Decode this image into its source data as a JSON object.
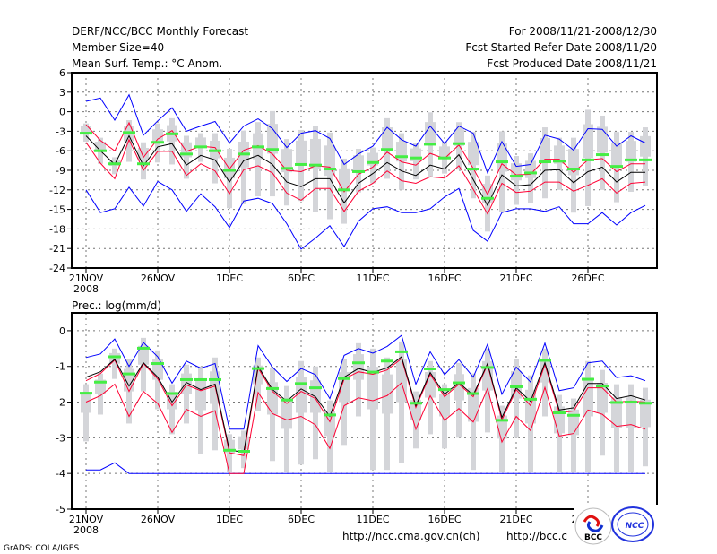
{
  "header": {
    "title": "DERF/NCC/BCC Monthly Forecast",
    "member_size": "Member Size=40",
    "temp_label": "Mean Surf. Temp.: °C Anom.",
    "period": "For 2008/11/21-2008/12/30",
    "started": "Fcst Started Refer Date 2008/11/20",
    "produced": "Fcst Produced Date 2008/11/21"
  },
  "footer": {
    "grads": "GrADS: COLA/IGES",
    "url_ncc": "http://ncc.cma.gov.cn(ch)",
    "url_bcc": "http://bcc.c",
    "logo_bcc": "BCC",
    "logo_ncc": "NCC"
  },
  "colors": {
    "max_min": "#0000ff",
    "spread": "#ff0033",
    "mean": "#000000",
    "obs": "#44ee44",
    "range": "#d4d5d9"
  },
  "chart_data": [
    {
      "type": "line",
      "title": "Mean Surf. Temp.: °C Anom.",
      "xlabel": "",
      "ylabel": "",
      "ylim": [
        -24,
        6
      ],
      "yticks": [
        "6",
        "3",
        "0",
        "-3",
        "-6",
        "-9",
        "-12",
        "-15",
        "-18",
        "-21",
        "-24"
      ],
      "yticks_values": [
        6,
        3,
        0,
        -3,
        -6,
        -9,
        -12,
        -15,
        -18,
        -21,
        -24
      ],
      "xticks": [
        "21NOV",
        "26NOV",
        "1DEC",
        "6DEC",
        "11DEC",
        "16DEC",
        "21DEC",
        "26DEC"
      ],
      "xticks_days": [
        0,
        5,
        10,
        15,
        20,
        25,
        30,
        35
      ],
      "year_label": "2008",
      "grid": true,
      "days": 40,
      "series": {
        "max": [
          1.6,
          2.1,
          -1.3,
          2.6,
          -3.6,
          -1.4,
          0.6,
          -3,
          -2.2,
          -1.5,
          -4.8,
          -2.2,
          -1.1,
          -2.6,
          -5.5,
          -3.3,
          -2.9,
          -4.1,
          -8.1,
          -6.5,
          -5.3,
          -2.4,
          -4.3,
          -5.3,
          -2.2,
          -4.9,
          -2.2,
          -3.3,
          -9.4,
          -4.6,
          -8.4,
          -8.1,
          -3.6,
          -4.2,
          -5.9,
          -2.6,
          -2.7,
          -5.3,
          -3.7,
          -4.8
        ],
        "min": [
          -12,
          -15.5,
          -14.9,
          -11.6,
          -14.5,
          -10.7,
          -12,
          -15.3,
          -12.6,
          -14.6,
          -17.8,
          -13.7,
          -13.3,
          -14.1,
          -17.2,
          -21.1,
          -19.4,
          -17.5,
          -20.7,
          -16.8,
          -14.9,
          -14.6,
          -15.5,
          -15.5,
          -14.9,
          -13.1,
          -11.8,
          -18.2,
          -19.9,
          -15.5,
          -14.9,
          -14.9,
          -15.3,
          -14.6,
          -17.2,
          -17.2,
          -15.5,
          -17.4,
          -15.5,
          -14.4
        ],
        "upper": [
          -2,
          -4.4,
          -6,
          -1.7,
          -7,
          -4.2,
          -2.9,
          -6.1,
          -5.3,
          -5.5,
          -8.8,
          -5.9,
          -5.2,
          -6.5,
          -9,
          -9.2,
          -8.3,
          -8.5,
          -12.3,
          -9.6,
          -8.5,
          -6.2,
          -7.7,
          -8.2,
          -6.4,
          -7.2,
          -5.1,
          -8.7,
          -12.7,
          -8,
          -9.7,
          -9.6,
          -7.3,
          -7.3,
          -9.3,
          -7.4,
          -7.2,
          -9.2,
          -8,
          -8
        ],
        "mean": [
          -3.7,
          -6,
          -8.1,
          -3.7,
          -8.3,
          -5.4,
          -4.9,
          -8.2,
          -6.7,
          -7.4,
          -10.8,
          -7.5,
          -6.7,
          -8.1,
          -10.8,
          -11.5,
          -10.3,
          -10.3,
          -14,
          -11,
          -9.5,
          -7.8,
          -9.1,
          -9.8,
          -8.2,
          -8.8,
          -6.6,
          -10.4,
          -14.4,
          -9.7,
          -11.4,
          -11.2,
          -9,
          -8.9,
          -10.9,
          -9.2,
          -8.5,
          -10.8,
          -9.3,
          -9.3
        ],
        "lower": [
          -4.7,
          -7.9,
          -10.3,
          -4.3,
          -9,
          -6.1,
          -6.1,
          -9.8,
          -8,
          -9.1,
          -12.6,
          -8.9,
          -8.3,
          -9.4,
          -12.5,
          -13.6,
          -11.8,
          -11.8,
          -15.3,
          -12.2,
          -11,
          -9.1,
          -10.6,
          -11,
          -10,
          -10.2,
          -8.3,
          -11.9,
          -15.7,
          -11,
          -12.4,
          -12.2,
          -10.8,
          -10.8,
          -12.2,
          -11.3,
          -10.3,
          -12.5,
          -11,
          -10.8
        ],
        "obs": [
          -3.3,
          -6,
          -8,
          -3.2,
          -8,
          -4.7,
          -3.4,
          -6.5,
          -5.4,
          -6,
          -9,
          -6.5,
          -5.4,
          -5.8,
          -8.7,
          -8.1,
          -8.2,
          -8.8,
          -12,
          -9.2,
          -7.8,
          -5.8,
          -6.9,
          -7.1,
          -5,
          -7.1,
          -4.9,
          -8.8,
          -13.3,
          -7.7,
          -9.9,
          -9.4,
          -7.7,
          -7.6,
          -8.8,
          -7.4,
          -6.6,
          -8.4,
          -7.4,
          -7.4
        ],
        "range_hi": [
          -1.8,
          -4,
          -7,
          -1.3,
          -4.7,
          -1.8,
          -1,
          -3.7,
          -3.3,
          -3.3,
          -5.7,
          -2.9,
          -1.6,
          0.1,
          -4.2,
          -2.8,
          -2.2,
          -3.2,
          -7.2,
          -5.7,
          -5.5,
          -1,
          -3.3,
          -4.8,
          -0.1,
          -4.6,
          -1.6,
          -3.1,
          -9.8,
          -3,
          -6.8,
          -6.4,
          -2.4,
          -4,
          -4,
          0.3,
          -0.6,
          -3.1,
          -3.1,
          -2.4
        ],
        "range_lo": [
          -4.6,
          -8,
          -9.6,
          -7.7,
          -10.4,
          -7.8,
          -8.1,
          -10.3,
          -7.7,
          -11,
          -14.8,
          -14.2,
          -13,
          -13,
          -14.4,
          -13.7,
          -15.4,
          -16.5,
          -17.2,
          -12.4,
          -11,
          -10.3,
          -12,
          -10.4,
          -10,
          -9.5,
          -8.9,
          -13.3,
          -18.4,
          -15.4,
          -14.3,
          -14,
          -13.3,
          -12,
          -15.5,
          -14.5,
          -12,
          -13.9,
          -12.3,
          -11.4
        ]
      }
    },
    {
      "type": "line",
      "title": "Prec.: log(mm/d)",
      "xlabel": "",
      "ylabel": "",
      "ylim": [
        -5,
        0.5
      ],
      "yticks": [
        "0",
        "-1",
        "-2",
        "-3",
        "-4",
        "-5"
      ],
      "yticks_values": [
        0,
        -1,
        -2,
        -3,
        -4,
        -5
      ],
      "xticks": [
        "21NOV",
        "26NOV",
        "1DEC",
        "6DEC",
        "11DEC",
        "16DEC",
        "21DEC",
        "26DEC"
      ],
      "xticks_days": [
        0,
        5,
        10,
        15,
        20,
        25,
        30,
        35
      ],
      "year_label": "2008",
      "grid": true,
      "days": 40,
      "series": {
        "max": [
          -0.75,
          -0.65,
          -0.23,
          -1.0,
          -0.33,
          -0.73,
          -1.47,
          -0.85,
          -1.05,
          -0.92,
          -2.76,
          -2.76,
          -0.42,
          -1.02,
          -1.42,
          -1.06,
          -1.23,
          -1.9,
          -0.69,
          -0.5,
          -0.63,
          -0.44,
          -0.13,
          -1.5,
          -0.59,
          -1.23,
          -0.81,
          -1.3,
          -0.38,
          -1.78,
          -1.02,
          -1.44,
          -0.35,
          -1.68,
          -1.6,
          -0.9,
          -0.85,
          -1.31,
          -1.26,
          -1.4
        ],
        "min": [
          -3.9,
          -3.9,
          -3.7,
          -4,
          -4,
          -4,
          -4,
          -4,
          -4,
          -4,
          -4,
          -4,
          -4,
          -4,
          -4,
          -4,
          -4,
          -4,
          -4,
          -4,
          -4,
          -4,
          -4,
          -4,
          -4,
          -4,
          -4,
          -4,
          -4,
          -4,
          -4,
          -4,
          -4,
          -4,
          -4,
          -4,
          -4,
          -4,
          -4,
          -4
        ],
        "upper": [
          -1.4,
          -1.2,
          -0.82,
          -1.7,
          -0.92,
          -1.35,
          -2.1,
          -1.52,
          -1.68,
          -1.55,
          -3.42,
          -3.5,
          -1.05,
          -1.7,
          -2.04,
          -1.7,
          -1.9,
          -2.55,
          -1.35,
          -1.15,
          -1.22,
          -1.1,
          -0.78,
          -2.15,
          -1.22,
          -1.85,
          -1.5,
          -1.85,
          -0.95,
          -2.5,
          -1.65,
          -2.1,
          -0.95,
          -2.3,
          -2.25,
          -1.6,
          -1.6,
          -2.0,
          -1.97,
          -2.0
        ],
        "mean": [
          -1.3,
          -1.15,
          -0.8,
          -1.55,
          -0.9,
          -1.3,
          -2.0,
          -1.45,
          -1.65,
          -1.5,
          -3.35,
          -3.4,
          -1.0,
          -1.65,
          -1.97,
          -1.63,
          -1.85,
          -2.4,
          -1.3,
          -1.06,
          -1.17,
          -1.04,
          -0.73,
          -2.1,
          -1.17,
          -1.78,
          -1.46,
          -1.8,
          -0.92,
          -2.43,
          -1.6,
          -1.98,
          -0.9,
          -2.22,
          -2.16,
          -1.48,
          -1.48,
          -1.9,
          -1.82,
          -1.94
        ],
        "lower": [
          -2.0,
          -1.82,
          -1.5,
          -2.4,
          -1.7,
          -2.04,
          -2.85,
          -2.2,
          -2.4,
          -2.24,
          -4,
          -4,
          -1.73,
          -2.32,
          -2.5,
          -2.4,
          -2.64,
          -3.3,
          -2.1,
          -1.88,
          -1.96,
          -1.82,
          -1.46,
          -2.76,
          -1.82,
          -2.51,
          -2.18,
          -2.56,
          -1.62,
          -3.12,
          -2.4,
          -2.8,
          -1.59,
          -2.95,
          -2.88,
          -2.22,
          -2.34,
          -2.68,
          -2.63,
          -2.76
        ],
        "obs": [
          -1.75,
          -1.44,
          -0.73,
          -1.21,
          -0.49,
          -0.92,
          -1.76,
          -1.37,
          -1.37,
          -1.37,
          -3.35,
          -3.38,
          -1.06,
          -1.62,
          -1.94,
          -1.48,
          -1.6,
          -2.36,
          -1.34,
          -0.9,
          -1.16,
          -0.85,
          -0.59,
          -2.03,
          -1.07,
          -1.65,
          -1.46,
          -1.76,
          -1.03,
          -2.51,
          -1.57,
          -1.92,
          -0.83,
          -2.3,
          -2.37,
          -1.36,
          -1.55,
          -2.01,
          -2.0,
          -2.03
        ],
        "range_hi": [
          -1.5,
          -1.2,
          -0.5,
          -0.8,
          -0.2,
          -0.55,
          -1.5,
          -0.95,
          -1.0,
          -0.75,
          -2.9,
          -2.8,
          -0.75,
          -1.05,
          -1.55,
          -0.85,
          -1.0,
          -1.95,
          -0.8,
          -0.35,
          -0.5,
          -0.75,
          -0.3,
          -1.7,
          -0.85,
          -1.5,
          -0.9,
          -1.2,
          -0.5,
          -2.1,
          -0.8,
          -1.25,
          -0.5,
          -1.8,
          -1.9,
          -0.85,
          -1.1,
          -1.5,
          -1.5,
          -1.6
        ],
        "range_lo": [
          -3.1,
          -2.35,
          -1.35,
          -2.6,
          -1.7,
          -2.2,
          -2.9,
          -2.6,
          -3.45,
          -3.35,
          -3.95,
          -3.85,
          -2.25,
          -3.65,
          -3.95,
          -3.75,
          -3.6,
          -3.95,
          -3.2,
          -2.4,
          -3.9,
          -3.9,
          -3.7,
          -3.3,
          -2.9,
          -3.3,
          -3.0,
          -3.9,
          -2.85,
          -3.95,
          -3.0,
          -3.95,
          -2.4,
          -3.95,
          -3.95,
          -3.95,
          -3.5,
          -3.95,
          -3.95,
          -3.8
        ]
      }
    }
  ]
}
